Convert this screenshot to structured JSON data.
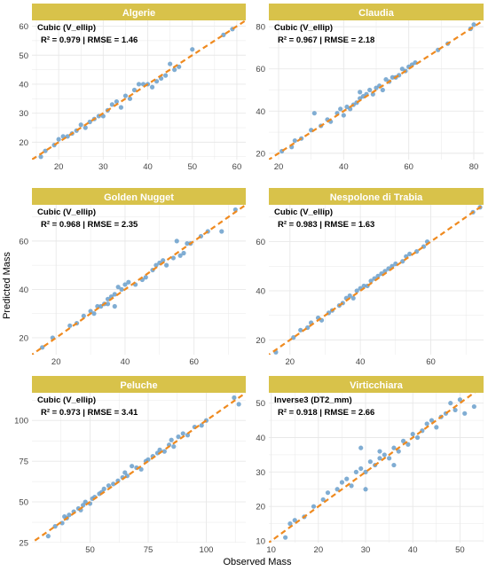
{
  "colors": {
    "strip": "#d8c24a",
    "point": "#6a9fcb",
    "fit_line": "#ef8a1f",
    "grid": "#e8e8e8"
  },
  "chart_data": {
    "type": "scatter",
    "xlabel": "Observed Mass",
    "ylabel": "Predicted Mass",
    "fit_line": "y = x (dashed)",
    "panels": [
      {
        "title": "Algerie",
        "annotation_line1": "Cubic (V_ellip)",
        "annotation_line2": "R² = 0.979 | RMSE = 1.46",
        "xlim": [
          14,
          62
        ],
        "ylim": [
          14,
          62
        ],
        "xticks": [
          20,
          30,
          40,
          50,
          60
        ],
        "yticks": [
          20,
          30,
          40,
          50,
          60
        ],
        "points": [
          [
            16,
            15
          ],
          [
            17,
            17
          ],
          [
            19,
            19
          ],
          [
            20,
            21
          ],
          [
            21,
            22
          ],
          [
            22,
            22
          ],
          [
            23,
            23
          ],
          [
            24,
            24
          ],
          [
            25,
            26
          ],
          [
            26,
            25
          ],
          [
            27,
            27
          ],
          [
            28,
            28
          ],
          [
            29,
            29
          ],
          [
            30,
            29
          ],
          [
            31,
            31
          ],
          [
            32,
            33
          ],
          [
            33,
            34
          ],
          [
            34,
            32
          ],
          [
            35,
            36
          ],
          [
            36,
            35
          ],
          [
            37,
            38
          ],
          [
            38,
            40
          ],
          [
            39,
            40
          ],
          [
            40,
            40
          ],
          [
            41,
            39
          ],
          [
            42,
            41
          ],
          [
            43,
            42
          ],
          [
            44,
            43
          ],
          [
            45,
            47
          ],
          [
            46,
            45
          ],
          [
            47,
            46
          ],
          [
            50,
            52
          ],
          [
            57,
            57
          ],
          [
            59,
            59
          ]
        ]
      },
      {
        "title": "Claudia",
        "annotation_line1": "Cubic (V_ellip)",
        "annotation_line2": "R² = 0.967 | RMSE = 2.18",
        "xlim": [
          17,
          83
        ],
        "ylim": [
          17,
          83
        ],
        "xticks": [
          20,
          40,
          60,
          80
        ],
        "yticks": [
          20,
          40,
          60,
          80
        ],
        "points": [
          [
            21,
            21
          ],
          [
            24,
            23
          ],
          [
            25,
            26
          ],
          [
            27,
            27
          ],
          [
            30,
            31
          ],
          [
            31,
            39
          ],
          [
            33,
            33
          ],
          [
            35,
            36
          ],
          [
            36,
            35
          ],
          [
            38,
            39
          ],
          [
            39,
            41
          ],
          [
            40,
            38
          ],
          [
            41,
            42
          ],
          [
            42,
            41
          ],
          [
            43,
            43
          ],
          [
            44,
            44
          ],
          [
            45,
            46
          ],
          [
            45,
            49
          ],
          [
            46,
            47
          ],
          [
            47,
            48
          ],
          [
            48,
            50
          ],
          [
            49,
            48
          ],
          [
            50,
            51
          ],
          [
            51,
            52
          ],
          [
            52,
            50
          ],
          [
            53,
            55
          ],
          [
            54,
            54
          ],
          [
            55,
            56
          ],
          [
            56,
            56
          ],
          [
            57,
            57
          ],
          [
            58,
            60
          ],
          [
            59,
            59
          ],
          [
            60,
            61
          ],
          [
            61,
            62
          ],
          [
            62,
            63
          ],
          [
            69,
            69
          ],
          [
            72,
            72
          ],
          [
            79,
            79
          ],
          [
            80,
            81
          ]
        ]
      },
      {
        "title": "Golden Nugget",
        "annotation_line1": "Cubic (V_ellip)",
        "annotation_line2": "R² = 0.968 | RMSE = 2.35",
        "xlim": [
          13,
          75
        ],
        "ylim": [
          13,
          75
        ],
        "xticks": [
          20,
          40,
          60
        ],
        "yticks": [
          20,
          40,
          60
        ],
        "points": [
          [
            16,
            16
          ],
          [
            19,
            20
          ],
          [
            24,
            25
          ],
          [
            26,
            26
          ],
          [
            28,
            29
          ],
          [
            30,
            31
          ],
          [
            31,
            30
          ],
          [
            32,
            33
          ],
          [
            33,
            33
          ],
          [
            34,
            34
          ],
          [
            35,
            34
          ],
          [
            35,
            36
          ],
          [
            36,
            37
          ],
          [
            37,
            38
          ],
          [
            37,
            33
          ],
          [
            38,
            41
          ],
          [
            39,
            40
          ],
          [
            40,
            42
          ],
          [
            41,
            43
          ],
          [
            43,
            42
          ],
          [
            45,
            44
          ],
          [
            46,
            45
          ],
          [
            48,
            48
          ],
          [
            49,
            50
          ],
          [
            50,
            51
          ],
          [
            51,
            52
          ],
          [
            52,
            50
          ],
          [
            54,
            53
          ],
          [
            55,
            60
          ],
          [
            56,
            54
          ],
          [
            57,
            55
          ],
          [
            58,
            59
          ],
          [
            59,
            59
          ],
          [
            62,
            62
          ],
          [
            64,
            64
          ],
          [
            68,
            64
          ],
          [
            72,
            73
          ]
        ]
      },
      {
        "title": "Nespolone di Trabia",
        "annotation_line1": "Cubic (V_ellip)",
        "annotation_line2": "R² = 0.983 | RMSE = 1.63",
        "xlim": [
          14,
          75
        ],
        "ylim": [
          14,
          75
        ],
        "xticks": [
          20,
          40,
          60
        ],
        "yticks": [
          20,
          40,
          60
        ],
        "points": [
          [
            16,
            15
          ],
          [
            21,
            21
          ],
          [
            23,
            24
          ],
          [
            25,
            25
          ],
          [
            26,
            27
          ],
          [
            28,
            29
          ],
          [
            29,
            28
          ],
          [
            31,
            31
          ],
          [
            32,
            32
          ],
          [
            34,
            34
          ],
          [
            35,
            35
          ],
          [
            36,
            37
          ],
          [
            37,
            38
          ],
          [
            38,
            37
          ],
          [
            39,
            40
          ],
          [
            40,
            41
          ],
          [
            41,
            42
          ],
          [
            42,
            42
          ],
          [
            43,
            44
          ],
          [
            44,
            45
          ],
          [
            45,
            46
          ],
          [
            46,
            47
          ],
          [
            47,
            48
          ],
          [
            48,
            49
          ],
          [
            49,
            50
          ],
          [
            50,
            51
          ],
          [
            52,
            52
          ],
          [
            53,
            54
          ],
          [
            54,
            55
          ],
          [
            56,
            56
          ],
          [
            58,
            58
          ],
          [
            59,
            60
          ],
          [
            72,
            72
          ],
          [
            74,
            74
          ]
        ]
      },
      {
        "title": "Peluche",
        "annotation_line1": "Cubic (V_ellip)",
        "annotation_line2": "R² = 0.973 | RMSE = 3.41",
        "xlim": [
          25,
          117
        ],
        "ylim": [
          25,
          117
        ],
        "xticks": [
          50,
          75,
          100
        ],
        "yticks": [
          25,
          50,
          75,
          100
        ],
        "points": [
          [
            32,
            29
          ],
          [
            35,
            35
          ],
          [
            38,
            37
          ],
          [
            39,
            41
          ],
          [
            40,
            40
          ],
          [
            41,
            42
          ],
          [
            43,
            44
          ],
          [
            45,
            46
          ],
          [
            46,
            45
          ],
          [
            47,
            48
          ],
          [
            48,
            50
          ],
          [
            50,
            49
          ],
          [
            51,
            52
          ],
          [
            52,
            53
          ],
          [
            54,
            55
          ],
          [
            55,
            56
          ],
          [
            56,
            58
          ],
          [
            58,
            60
          ],
          [
            60,
            61
          ],
          [
            62,
            63
          ],
          [
            64,
            65
          ],
          [
            65,
            68
          ],
          [
            66,
            66
          ],
          [
            68,
            72
          ],
          [
            70,
            71
          ],
          [
            72,
            70
          ],
          [
            74,
            75
          ],
          [
            75,
            76
          ],
          [
            77,
            78
          ],
          [
            79,
            80
          ],
          [
            80,
            82
          ],
          [
            82,
            81
          ],
          [
            84,
            85
          ],
          [
            85,
            88
          ],
          [
            86,
            84
          ],
          [
            88,
            90
          ],
          [
            90,
            92
          ],
          [
            92,
            91
          ],
          [
            95,
            96
          ],
          [
            98,
            97
          ],
          [
            100,
            100
          ],
          [
            112,
            114
          ],
          [
            114,
            110
          ]
        ]
      },
      {
        "title": "Virticchiara",
        "annotation_line1": "Inverse3 (DT2_mm)",
        "annotation_line2": "R² = 0.918 | RMSE = 2.66",
        "xlim": [
          9.5,
          55
        ],
        "ylim": [
          9.5,
          53
        ],
        "xticks": [
          10,
          20,
          30,
          40,
          50
        ],
        "yticks": [
          10,
          20,
          30,
          40,
          50
        ],
        "points": [
          [
            13,
            11
          ],
          [
            14,
            15
          ],
          [
            15,
            16
          ],
          [
            17,
            17
          ],
          [
            19,
            20
          ],
          [
            21,
            22
          ],
          [
            22,
            24
          ],
          [
            24,
            25
          ],
          [
            25,
            27
          ],
          [
            26,
            28
          ],
          [
            27,
            26
          ],
          [
            28,
            30
          ],
          [
            29,
            31
          ],
          [
            30,
            30
          ],
          [
            31,
            33
          ],
          [
            32,
            32
          ],
          [
            33,
            34
          ],
          [
            34,
            35
          ],
          [
            35,
            34
          ],
          [
            36,
            37
          ],
          [
            37,
            36
          ],
          [
            38,
            39
          ],
          [
            39,
            38
          ],
          [
            40,
            41
          ],
          [
            41,
            40
          ],
          [
            42,
            42
          ],
          [
            43,
            44
          ],
          [
            44,
            45
          ],
          [
            45,
            43
          ],
          [
            46,
            46
          ],
          [
            47,
            47
          ],
          [
            48,
            50
          ],
          [
            49,
            48
          ],
          [
            50,
            51
          ],
          [
            51,
            47
          ],
          [
            53,
            49
          ],
          [
            29,
            37
          ],
          [
            30,
            25
          ],
          [
            33,
            36
          ],
          [
            36,
            32
          ]
        ]
      }
    ]
  }
}
